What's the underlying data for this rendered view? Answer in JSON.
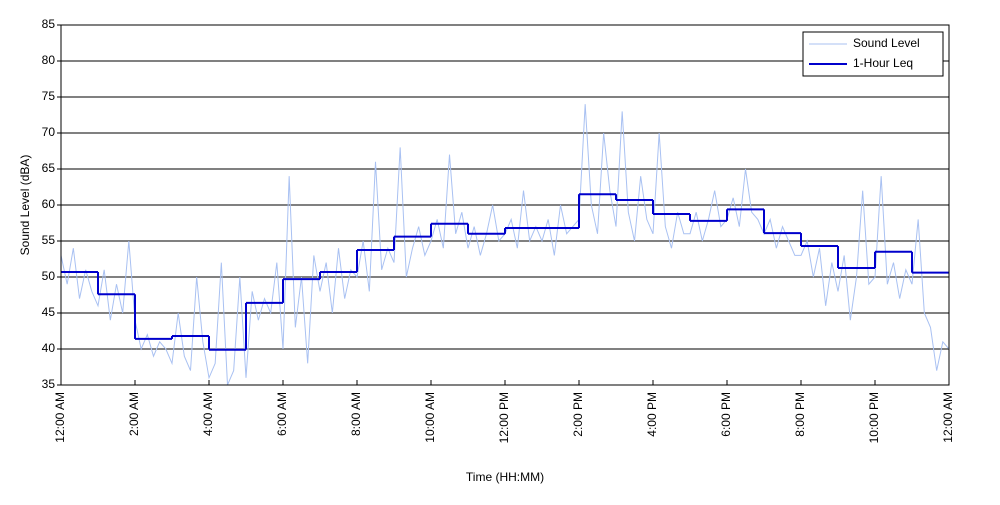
{
  "chart_data": {
    "type": "line",
    "xlabel": "Time (HH:MM)",
    "ylabel": "Sound Level (dBA)",
    "xlim": [
      0,
      1440
    ],
    "xticks": [
      {
        "value": 0,
        "label": "12:00 AM"
      },
      {
        "value": 120,
        "label": "2:00 AM"
      },
      {
        "value": 240,
        "label": "4:00 AM"
      },
      {
        "value": 360,
        "label": "6:00 AM"
      },
      {
        "value": 480,
        "label": "8:00 AM"
      },
      {
        "value": 600,
        "label": "10:00 AM"
      },
      {
        "value": 720,
        "label": "12:00 PM"
      },
      {
        "value": 840,
        "label": "2:00 PM"
      },
      {
        "value": 960,
        "label": "4:00 PM"
      },
      {
        "value": 1080,
        "label": "6:00 PM"
      },
      {
        "value": 1200,
        "label": "8:00 PM"
      },
      {
        "value": 1320,
        "label": "10:00 PM"
      },
      {
        "value": 1440,
        "label": "12:00 AM"
      }
    ],
    "ylim": [
      35,
      85
    ],
    "yticks": [
      35,
      40,
      45,
      50,
      55,
      60,
      65,
      70,
      75,
      80,
      85
    ],
    "grid": true,
    "legend": "upper right",
    "series": [
      {
        "name": "Sound Level",
        "color": "#a9c1f2",
        "style": "line",
        "x": [
          0,
          10,
          20,
          30,
          40,
          50,
          60,
          70,
          80,
          90,
          100,
          110,
          120,
          130,
          140,
          150,
          160,
          170,
          180,
          190,
          200,
          210,
          220,
          230,
          240,
          250,
          260,
          270,
          280,
          290,
          300,
          310,
          320,
          330,
          340,
          350,
          360,
          370,
          380,
          390,
          400,
          410,
          420,
          430,
          440,
          450,
          460,
          470,
          480,
          490,
          500,
          510,
          520,
          530,
          540,
          550,
          560,
          570,
          580,
          590,
          600,
          610,
          620,
          630,
          640,
          650,
          660,
          670,
          680,
          690,
          700,
          710,
          720,
          730,
          740,
          750,
          760,
          770,
          780,
          790,
          800,
          810,
          820,
          830,
          840,
          850,
          860,
          870,
          880,
          890,
          900,
          910,
          920,
          930,
          940,
          950,
          960,
          970,
          980,
          990,
          1000,
          1010,
          1020,
          1030,
          1040,
          1050,
          1060,
          1070,
          1080,
          1090,
          1100,
          1110,
          1120,
          1130,
          1140,
          1150,
          1160,
          1170,
          1180,
          1190,
          1200,
          1210,
          1220,
          1230,
          1240,
          1250,
          1260,
          1270,
          1280,
          1290,
          1300,
          1310,
          1320,
          1330,
          1340,
          1350,
          1360,
          1370,
          1380,
          1390,
          1400,
          1410,
          1420,
          1430,
          1440
        ],
        "values": [
          53,
          49,
          54,
          47,
          51,
          48,
          46,
          51,
          44,
          49,
          45,
          55,
          44,
          40,
          42,
          39,
          41,
          40,
          38,
          45,
          39,
          37,
          50,
          41,
          36,
          38,
          52,
          35,
          37,
          50,
          36,
          48,
          44,
          47,
          45,
          52,
          40,
          64,
          43,
          50,
          38,
          53,
          48,
          52,
          45,
          54,
          47,
          51,
          50,
          55,
          48,
          66,
          51,
          54,
          52,
          68,
          50,
          54,
          57,
          53,
          55,
          58,
          54,
          67,
          56,
          59,
          54,
          57,
          53,
          56,
          60,
          55,
          56,
          58,
          54,
          62,
          55,
          57,
          55,
          58,
          53,
          60,
          56,
          57,
          58,
          74,
          60,
          56,
          70,
          62,
          57,
          73,
          59,
          55,
          64,
          58,
          56,
          70,
          57,
          54,
          59,
          56,
          56,
          59,
          55,
          58,
          62,
          57,
          58,
          61,
          57,
          65,
          59,
          58,
          56,
          58,
          54,
          57,
          55,
          53,
          53,
          55,
          50,
          54,
          46,
          52,
          48,
          53,
          44,
          50,
          62,
          49,
          50,
          64,
          49,
          52,
          47,
          51,
          49,
          58,
          45,
          43,
          37,
          41,
          40
        ]
      },
      {
        "name": "1-Hour Leq",
        "color": "#0000cc",
        "style": "step",
        "x": [
          0,
          60,
          120,
          180,
          240,
          300,
          360,
          420,
          480,
          540,
          600,
          660,
          720,
          780,
          840,
          900,
          960,
          1020,
          1080,
          1140,
          1200,
          1260,
          1320,
          1380
        ],
        "values": [
          50.7,
          47.6,
          41.4,
          41.8,
          39.9,
          46.4,
          49.7,
          50.7,
          53.75,
          55.6,
          57.4,
          56.0,
          56.8,
          56.8,
          61.5,
          60.7,
          58.75,
          57.8,
          59.4,
          56.1,
          54.3,
          51.25,
          53.5,
          50.6
        ]
      }
    ]
  }
}
